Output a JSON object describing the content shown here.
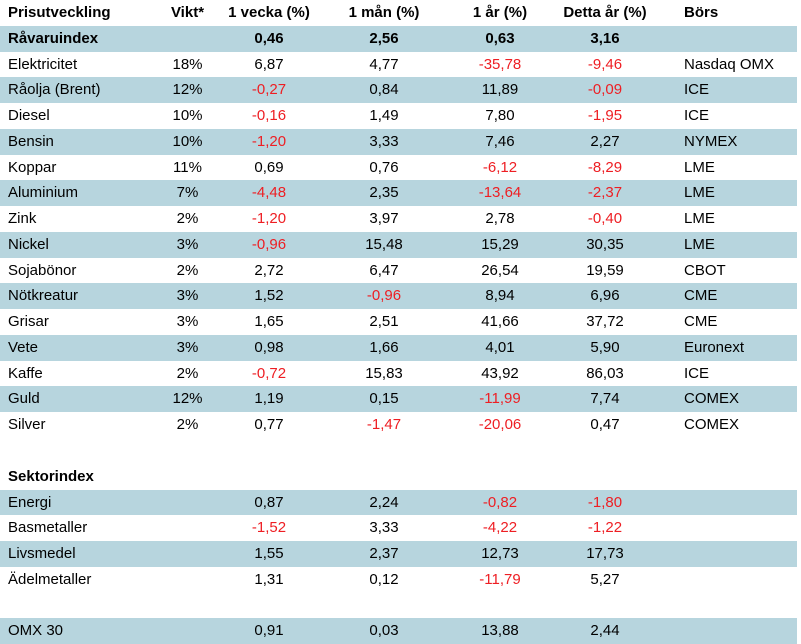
{
  "colors": {
    "shaded_row": "#b7d5de",
    "negative_value": "#ee1e23",
    "text": "#000000"
  },
  "table": {
    "columns": [
      {
        "key": "name",
        "label": "Prisutveckling",
        "align": "left"
      },
      {
        "key": "vikt",
        "label": "Vikt*",
        "align": "center"
      },
      {
        "key": "vecka",
        "label": "1 vecka (%)",
        "align": "center"
      },
      {
        "key": "man",
        "label": "1 mån (%)",
        "align": "center"
      },
      {
        "key": "ar",
        "label": "1 år (%)",
        "align": "center"
      },
      {
        "key": "detta",
        "label": "Detta år (%)",
        "align": "center"
      },
      {
        "key": "bors",
        "label": "Börs",
        "align": "left"
      }
    ],
    "rows": [
      {
        "type": "index",
        "name": "Råvaruindex",
        "vikt": "",
        "vecka": "0,46",
        "man": "2,56",
        "ar": "0,63",
        "detta": "3,16",
        "bors": "",
        "bold": true,
        "shaded": true
      },
      {
        "type": "data",
        "name": "Elektricitet",
        "vikt": "18%",
        "vecka": "6,87",
        "man": "4,77",
        "ar": "-35,78",
        "detta": "-9,46",
        "bors": "Nasdaq OMX",
        "bold": false,
        "shaded": false
      },
      {
        "type": "data",
        "name": "Råolja (Brent)",
        "vikt": "12%",
        "vecka": "-0,27",
        "man": "0,84",
        "ar": "11,89",
        "detta": "-0,09",
        "bors": "ICE",
        "bold": false,
        "shaded": true
      },
      {
        "type": "data",
        "name": "Diesel",
        "vikt": "10%",
        "vecka": "-0,16",
        "man": "1,49",
        "ar": "7,80",
        "detta": "-1,95",
        "bors": "ICE",
        "bold": false,
        "shaded": false
      },
      {
        "type": "data",
        "name": "Bensin",
        "vikt": "10%",
        "vecka": "-1,20",
        "man": "3,33",
        "ar": "7,46",
        "detta": "2,27",
        "bors": "NYMEX",
        "bold": false,
        "shaded": true
      },
      {
        "type": "data",
        "name": "Koppar",
        "vikt": "11%",
        "vecka": "0,69",
        "man": "0,76",
        "ar": "-6,12",
        "detta": "-8,29",
        "bors": "LME",
        "bold": false,
        "shaded": false
      },
      {
        "type": "data",
        "name": "Aluminium",
        "vikt": "7%",
        "vecka": "-4,48",
        "man": "2,35",
        "ar": "-13,64",
        "detta": "-2,37",
        "bors": "LME",
        "bold": false,
        "shaded": true
      },
      {
        "type": "data",
        "name": "Zink",
        "vikt": "2%",
        "vecka": "-1,20",
        "man": "3,97",
        "ar": "2,78",
        "detta": "-0,40",
        "bors": "LME",
        "bold": false,
        "shaded": false
      },
      {
        "type": "data",
        "name": "Nickel",
        "vikt": "3%",
        "vecka": "-0,96",
        "man": "15,48",
        "ar": "15,29",
        "detta": "30,35",
        "bors": "LME",
        "bold": false,
        "shaded": true
      },
      {
        "type": "data",
        "name": "Sojabönor",
        "vikt": "2%",
        "vecka": "2,72",
        "man": "6,47",
        "ar": "26,54",
        "detta": "19,59",
        "bors": "CBOT",
        "bold": false,
        "shaded": false
      },
      {
        "type": "data",
        "name": "Nötkreatur",
        "vikt": "3%",
        "vecka": "1,52",
        "man": "-0,96",
        "ar": "8,94",
        "detta": "6,96",
        "bors": "CME",
        "bold": false,
        "shaded": true
      },
      {
        "type": "data",
        "name": "Grisar",
        "vikt": "3%",
        "vecka": "1,65",
        "man": "2,51",
        "ar": "41,66",
        "detta": "37,72",
        "bors": "CME",
        "bold": false,
        "shaded": false
      },
      {
        "type": "data",
        "name": "Vete",
        "vikt": "3%",
        "vecka": "0,98",
        "man": "1,66",
        "ar": "4,01",
        "detta": "5,90",
        "bors": "Euronext",
        "bold": false,
        "shaded": true
      },
      {
        "type": "data",
        "name": "Kaffe",
        "vikt": "2%",
        "vecka": "-0,72",
        "man": "15,83",
        "ar": "43,92",
        "detta": "86,03",
        "bors": "ICE",
        "bold": false,
        "shaded": false
      },
      {
        "type": "data",
        "name": "Guld",
        "vikt": "12%",
        "vecka": "1,19",
        "man": "0,15",
        "ar": "-11,99",
        "detta": "7,74",
        "bors": "COMEX",
        "bold": false,
        "shaded": true
      },
      {
        "type": "data",
        "name": "Silver",
        "vikt": "2%",
        "vecka": "0,77",
        "man": "-1,47",
        "ar": "-20,06",
        "detta": "0,47",
        "bors": "COMEX",
        "bold": false,
        "shaded": false
      },
      {
        "type": "blank",
        "name": "",
        "vikt": "",
        "vecka": "",
        "man": "",
        "ar": "",
        "detta": "",
        "bors": "",
        "bold": false,
        "shaded": false
      },
      {
        "type": "section",
        "name": "Sektorindex",
        "vikt": "",
        "vecka": "",
        "man": "",
        "ar": "",
        "detta": "",
        "bors": "",
        "bold": true,
        "shaded": false
      },
      {
        "type": "data",
        "name": "Energi",
        "vikt": "",
        "vecka": "0,87",
        "man": "2,24",
        "ar": "-0,82",
        "detta": "-1,80",
        "bors": "",
        "bold": false,
        "shaded": true
      },
      {
        "type": "data",
        "name": "Basmetaller",
        "vikt": "",
        "vecka": "-1,52",
        "man": "3,33",
        "ar": "-4,22",
        "detta": "-1,22",
        "bors": "",
        "bold": false,
        "shaded": false
      },
      {
        "type": "data",
        "name": "Livsmedel",
        "vikt": "",
        "vecka": "1,55",
        "man": "2,37",
        "ar": "12,73",
        "detta": "17,73",
        "bors": "",
        "bold": false,
        "shaded": true
      },
      {
        "type": "data",
        "name": "Ädelmetaller",
        "vikt": "",
        "vecka": "1,31",
        "man": "0,12",
        "ar": "-11,79",
        "detta": "5,27",
        "bors": "",
        "bold": false,
        "shaded": false
      },
      {
        "type": "blank",
        "name": "",
        "vikt": "",
        "vecka": "",
        "man": "",
        "ar": "",
        "detta": "",
        "bors": "",
        "bold": false,
        "shaded": false
      },
      {
        "type": "data",
        "name": "OMX 30",
        "vikt": "",
        "vecka": "0,91",
        "man": "0,03",
        "ar": "13,88",
        "detta": "2,44",
        "bors": "",
        "bold": false,
        "shaded": true
      }
    ]
  }
}
